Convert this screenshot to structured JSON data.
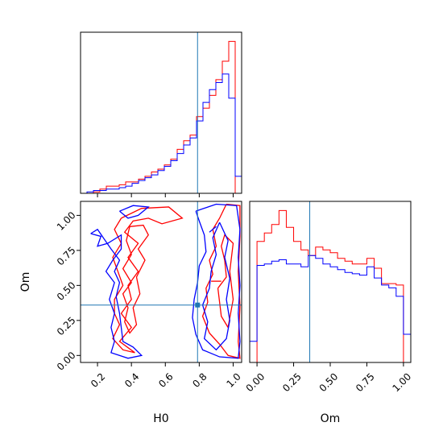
{
  "chart_data": {
    "type": "corner",
    "colors": {
      "red": "#ff0000",
      "blue": "#0000ff",
      "truth": "#1f77b4"
    },
    "parameters": [
      "H0",
      "Om"
    ],
    "truth": {
      "H0": 0.79,
      "Om": 0.36
    },
    "panels": [
      {
        "id": "hist-H0",
        "type": "histogram",
        "xlim": [
          0.1,
          1.05
        ],
        "bin_edges": [
          0.1,
          0.138,
          0.176,
          0.214,
          0.252,
          0.29,
          0.328,
          0.366,
          0.404,
          0.442,
          0.48,
          0.518,
          0.556,
          0.594,
          0.632,
          0.67,
          0.708,
          0.746,
          0.784,
          0.822,
          0.86,
          0.898,
          0.936,
          0.974,
          1.012,
          1.05
        ],
        "series": [
          {
            "color": "red",
            "counts": [
              0,
              0,
              1,
              3,
              5,
              5,
              6,
              8,
              8,
              10,
              12,
              15,
              17,
              20,
              24,
              31,
              37,
              41,
              54,
              60,
              69,
              80,
              93,
              107,
              0
            ]
          },
          {
            "color": "blue",
            "counts": [
              0,
              1,
              2,
              2,
              3,
              3,
              4,
              5,
              7,
              9,
              11,
              13,
              16,
              19,
              23,
              28,
              34,
              39,
              51,
              64,
              73,
              78,
              84,
              67,
              12
            ]
          }
        ]
      },
      {
        "id": "contour-H0-Om",
        "type": "contour",
        "xlim": [
          0.1,
          1.05
        ],
        "ylim": [
          -0.05,
          1.1
        ],
        "xticks": [
          "0.2",
          "0.4",
          "0.6",
          "0.8",
          "1.0"
        ],
        "yticks": [
          "0.00",
          "0.25",
          "0.50",
          "0.75",
          "1.00"
        ],
        "xlabel": "H0",
        "ylabel": "Om",
        "series": [
          {
            "color": "red",
            "paths": [
              [
                [
                  0.34,
                  0.98
                ],
                [
                  0.46,
                  1.05
                ],
                [
                  0.62,
                  1.06
                ],
                [
                  0.7,
                  0.98
                ],
                [
                  0.58,
                  0.94
                ],
                [
                  0.5,
                  0.98
                ],
                [
                  0.41,
                  0.96
                ],
                [
                  0.36,
                  0.88
                ],
                [
                  0.44,
                  0.8
                ],
                [
                  0.38,
                  0.7
                ],
                [
                  0.44,
                  0.6
                ],
                [
                  0.38,
                  0.5
                ],
                [
                  0.4,
                  0.4
                ],
                [
                  0.34,
                  0.3
                ],
                [
                  0.4,
                  0.2
                ],
                [
                  0.33,
                  0.1
                ],
                [
                  0.42,
                  0.02
                ],
                [
                  0.35,
                  0.04
                ],
                [
                  0.29,
                  0.12
                ],
                [
                  0.33,
                  0.22
                ],
                [
                  0.3,
                  0.3
                ],
                [
                  0.3,
                  0.4
                ],
                [
                  0.35,
                  0.5
                ],
                [
                  0.32,
                  0.6
                ],
                [
                  0.29,
                  0.7
                ],
                [
                  0.34,
                  0.8
                ],
                [
                  0.3,
                  0.9
                ],
                [
                  0.34,
                  0.98
                ]
              ],
              [
                [
                  0.39,
                  0.92
                ],
                [
                  0.47,
                  0.93
                ],
                [
                  0.5,
                  0.86
                ],
                [
                  0.44,
                  0.76
                ],
                [
                  0.48,
                  0.68
                ],
                [
                  0.43,
                  0.56
                ],
                [
                  0.45,
                  0.44
                ],
                [
                  0.41,
                  0.34
                ],
                [
                  0.43,
                  0.22
                ],
                [
                  0.39,
                  0.16
                ],
                [
                  0.36,
                  0.24
                ],
                [
                  0.38,
                  0.34
                ],
                [
                  0.35,
                  0.44
                ],
                [
                  0.4,
                  0.52
                ],
                [
                  0.35,
                  0.62
                ],
                [
                  0.4,
                  0.72
                ],
                [
                  0.37,
                  0.82
                ],
                [
                  0.39,
                  0.92
                ]
              ],
              [
                [
                  0.96,
                  1.08
                ],
                [
                  1.04,
                  1.07
                ],
                [
                  1.04,
                  0.85
                ],
                [
                  1.03,
                  0.6
                ],
                [
                  1.04,
                  0.35
                ],
                [
                  1.03,
                  0.1
                ],
                [
                  1.04,
                  -0.02
                ],
                [
                  0.97,
                  0.0
                ],
                [
                  0.92,
                  0.08
                ],
                [
                  0.86,
                  0.16
                ],
                [
                  0.82,
                  0.28
                ],
                [
                  0.85,
                  0.38
                ],
                [
                  0.84,
                  0.48
                ],
                [
                  0.88,
                  0.58
                ],
                [
                  0.86,
                  0.68
                ],
                [
                  0.9,
                  0.78
                ],
                [
                  0.88,
                  0.9
                ],
                [
                  0.92,
                  0.98
                ],
                [
                  0.96,
                  1.08
                ]
              ],
              [
                [
                  0.91,
                  0.48
                ],
                [
                  0.96,
                  0.56
                ],
                [
                  0.95,
                  0.68
                ],
                [
                  0.93,
                  0.78
                ],
                [
                  0.95,
                  0.86
                ],
                [
                  1.0,
                  0.8
                ],
                [
                  0.98,
                  0.6
                ],
                [
                  1.0,
                  0.4
                ],
                [
                  0.97,
                  0.2
                ],
                [
                  0.93,
                  0.28
                ],
                [
                  0.92,
                  0.38
                ],
                [
                  0.91,
                  0.48
                ]
              ],
              [
                [
                  0.87,
                  0.53
                ],
                [
                  0.93,
                  0.53
                ]
              ]
            ]
          },
          {
            "color": "blue",
            "paths": [
              [
                [
                  0.33,
                  1.03
                ],
                [
                  0.41,
                  1.07
                ],
                [
                  0.5,
                  1.06
                ],
                [
                  0.44,
                  1.0
                ],
                [
                  0.38,
                  0.98
                ],
                [
                  0.33,
                  1.03
                ]
              ],
              [
                [
                  0.16,
                  0.87
                ],
                [
                  0.22,
                  0.85
                ],
                [
                  0.2,
                  0.78
                ],
                [
                  0.26,
                  0.8
                ],
                [
                  0.34,
                  0.86
                ],
                [
                  0.34,
                  0.76
                ],
                [
                  0.29,
                  0.68
                ],
                [
                  0.25,
                  0.6
                ],
                [
                  0.3,
                  0.52
                ],
                [
                  0.27,
                  0.4
                ],
                [
                  0.3,
                  0.3
                ],
                [
                  0.28,
                  0.2
                ],
                [
                  0.3,
                  0.1
                ],
                [
                  0.28,
                  0.02
                ],
                [
                  0.38,
                  -0.02
                ],
                [
                  0.46,
                  0.0
                ],
                [
                  0.41,
                  0.06
                ],
                [
                  0.35,
                  0.1
                ],
                [
                  0.34,
                  0.2
                ],
                [
                  0.33,
                  0.3
                ],
                [
                  0.31,
                  0.42
                ],
                [
                  0.33,
                  0.52
                ],
                [
                  0.3,
                  0.6
                ],
                [
                  0.33,
                  0.68
                ],
                [
                  0.28,
                  0.76
                ],
                [
                  0.2,
                  0.9
                ],
                [
                  0.16,
                  0.87
                ]
              ],
              [
                [
                  0.78,
                  1.03
                ],
                [
                  0.9,
                  1.08
                ],
                [
                  1.02,
                  1.07
                ],
                [
                  1.04,
                  0.9
                ],
                [
                  1.03,
                  0.7
                ],
                [
                  1.04,
                  0.5
                ],
                [
                  1.03,
                  0.3
                ],
                [
                  1.04,
                  0.1
                ],
                [
                  1.03,
                  -0.02
                ],
                [
                  0.92,
                  -0.01
                ],
                [
                  0.82,
                  0.04
                ],
                [
                  0.78,
                  0.15
                ],
                [
                  0.76,
                  0.27
                ],
                [
                  0.77,
                  0.4
                ],
                [
                  0.79,
                  0.52
                ],
                [
                  0.8,
                  0.64
                ],
                [
                  0.84,
                  0.74
                ],
                [
                  0.83,
                  0.86
                ],
                [
                  0.8,
                  0.96
                ],
                [
                  0.78,
                  1.03
                ]
              ],
              [
                [
                  0.92,
                  0.95
                ],
                [
                  0.97,
                  0.82
                ],
                [
                  0.95,
                  0.7
                ],
                [
                  0.98,
                  0.55
                ],
                [
                  0.96,
                  0.4
                ],
                [
                  0.98,
                  0.25
                ],
                [
                  0.96,
                  0.12
                ],
                [
                  0.9,
                  0.04
                ],
                [
                  0.83,
                  0.12
                ],
                [
                  0.85,
                  0.24
                ],
                [
                  0.82,
                  0.36
                ],
                [
                  0.86,
                  0.48
                ],
                [
                  0.87,
                  0.6
                ],
                [
                  0.9,
                  0.72
                ],
                [
                  0.88,
                  0.84
                ],
                [
                  0.92,
                  0.95
                ]
              ],
              [
                [
                  0.86,
                  0.88
                ],
                [
                  0.9,
                  0.92
                ]
              ]
            ]
          }
        ]
      },
      {
        "id": "hist-Om",
        "type": "histogram",
        "xlim": [
          -0.05,
          1.05
        ],
        "xticks": [
          "0.00",
          "0.25",
          "0.50",
          "0.75",
          "1.00"
        ],
        "xlabel": "Om",
        "bin_edges": [
          -0.05,
          0.0,
          0.05,
          0.1,
          0.15,
          0.2,
          0.25,
          0.3,
          0.35,
          0.4,
          0.45,
          0.5,
          0.55,
          0.6,
          0.65,
          0.7,
          0.75,
          0.8,
          0.85,
          0.9,
          0.95,
          1.0,
          1.05
        ],
        "series": [
          {
            "color": "red",
            "counts": [
              0,
              86,
              92,
              98,
              108,
              96,
              86,
              80,
              76,
              82,
              80,
              78,
              74,
              72,
              70,
              70,
              74,
              67,
              56,
              56,
              55,
              0
            ]
          },
          {
            "color": "blue",
            "counts": [
              15,
              69,
              70,
              72,
              73,
              70,
              70,
              68,
              76,
              74,
              70,
              68,
              66,
              64,
              63,
              62,
              68,
              60,
              55,
              53,
              47,
              20
            ]
          }
        ]
      }
    ]
  }
}
